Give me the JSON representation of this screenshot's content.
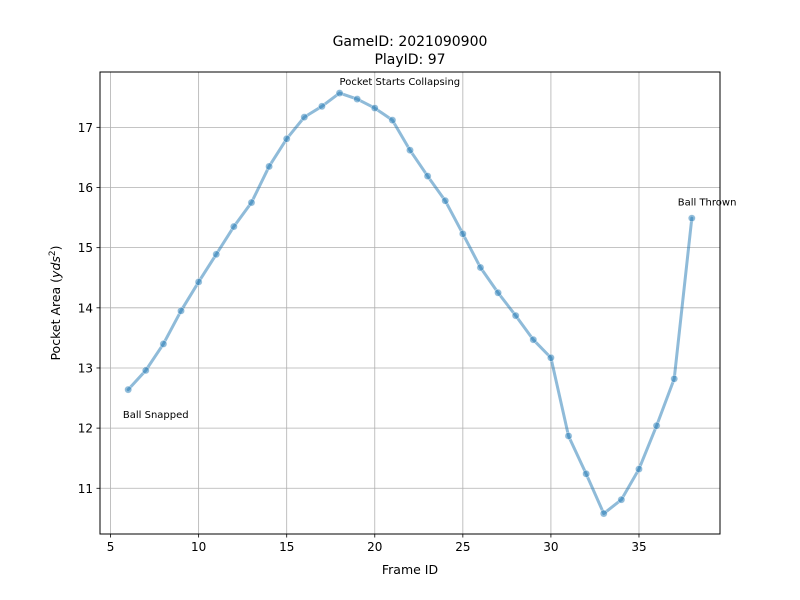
{
  "chart_data": {
    "type": "line",
    "title_line1": "GameID: 2021090900",
    "title_line2": "PlayID: 97",
    "xlabel": "Frame ID",
    "ylabel_main": "Pocket Area (",
    "ylabel_unit": "yds",
    "ylabel_sup": "2",
    "ylabel_close": ")",
    "xlim": [
      4.4,
      39.6
    ],
    "ylim": [
      10.24,
      17.92
    ],
    "xticks": [
      5,
      10,
      15,
      20,
      25,
      30,
      35
    ],
    "yticks": [
      11,
      12,
      13,
      14,
      15,
      16,
      17
    ],
    "grid": true,
    "line_color": "#1f77b4",
    "x": [
      6,
      7,
      8,
      9,
      10,
      11,
      12,
      13,
      14,
      15,
      16,
      17,
      18,
      19,
      20,
      21,
      22,
      23,
      24,
      25,
      26,
      27,
      28,
      29,
      30,
      31,
      32,
      33,
      34,
      35,
      36,
      37,
      38
    ],
    "y": [
      12.64,
      12.96,
      13.4,
      13.95,
      14.43,
      14.89,
      15.35,
      15.75,
      16.35,
      16.81,
      17.17,
      17.35,
      17.57,
      17.47,
      17.32,
      17.12,
      16.62,
      16.19,
      15.78,
      15.23,
      14.67,
      14.25,
      13.87,
      13.47,
      13.17,
      11.87,
      11.24,
      10.58,
      10.81,
      11.32,
      12.04,
      12.82,
      15.49
    ],
    "annotations": [
      {
        "text": "Ball Snapped",
        "x": 5.7,
        "y": 12.17
      },
      {
        "text": "Pocket Starts Collapsing",
        "x": 18.0,
        "y": 17.7
      },
      {
        "text": "Ball Thrown",
        "x": 37.2,
        "y": 15.7
      }
    ]
  }
}
